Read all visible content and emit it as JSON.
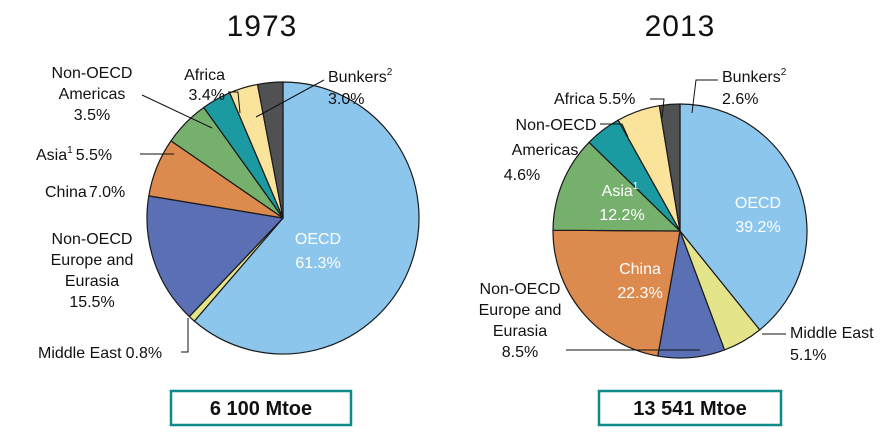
{
  "chart_data": [
    {
      "type": "pie",
      "title": "1973",
      "total": "6 100 Mtoe",
      "slices": [
        {
          "name": "OECD",
          "value": 61.3,
          "label": "61.3%",
          "color": "#8cc6ec"
        },
        {
          "name": "Middle East",
          "value": 0.8,
          "label": "0.8%",
          "color": "#e4e58a"
        },
        {
          "name": "Non-OECD Europe and Eurasia",
          "value": 15.5,
          "label": "15.5%",
          "color": "#5b6fb5"
        },
        {
          "name": "China",
          "value": 7.0,
          "label": "7.0%",
          "color": "#dd8a4e"
        },
        {
          "name": "Asia",
          "value": 5.5,
          "label": "5.5%",
          "color": "#76b06d"
        },
        {
          "name": "Non-OECD Americas",
          "value": 3.5,
          "label": "3.5%",
          "color": "#1b9aa1"
        },
        {
          "name": "Africa",
          "value": 3.4,
          "label": "3.4%",
          "color": "#fae39b"
        },
        {
          "name": "Bunkers",
          "value": 3.0,
          "label": "3.0%",
          "color": "#505152"
        }
      ]
    },
    {
      "type": "pie",
      "title": "2013",
      "total": "13 541 Mtoe",
      "slices": [
        {
          "name": "OECD",
          "value": 39.2,
          "label": "39.2%",
          "color": "#8cc6ec"
        },
        {
          "name": "Middle East",
          "value": 5.1,
          "label": "5.1%",
          "color": "#e4e58a"
        },
        {
          "name": "Non-OECD Europe and Eurasia",
          "value": 8.5,
          "label": "8.5%",
          "color": "#5b6fb5"
        },
        {
          "name": "China",
          "value": 22.3,
          "label": "22.3%",
          "color": "#dd8a4e"
        },
        {
          "name": "Asia",
          "value": 12.2,
          "label": "12.2%",
          "color": "#76b06d"
        },
        {
          "name": "Non-OECD Americas",
          "value": 4.6,
          "label": "4.6%",
          "color": "#1b9aa1"
        },
        {
          "name": "Africa",
          "value": 5.5,
          "label": "5.5%",
          "color": "#fae39b"
        },
        {
          "name": "Bunkers",
          "value": 2.6,
          "label": "2.6%",
          "color": "#505152"
        }
      ]
    }
  ],
  "labels": {
    "oecd": "OECD",
    "non_oecd": "Non-OECD",
    "americas": "Americas",
    "africa": "Africa",
    "bunkers": "Bunkers",
    "bunkers_note": "2",
    "asia": "Asia",
    "asia_note": "1",
    "china": "China",
    "europe_and": "Europe and",
    "eurasia": "Eurasia",
    "middle_east": "Middle East"
  }
}
